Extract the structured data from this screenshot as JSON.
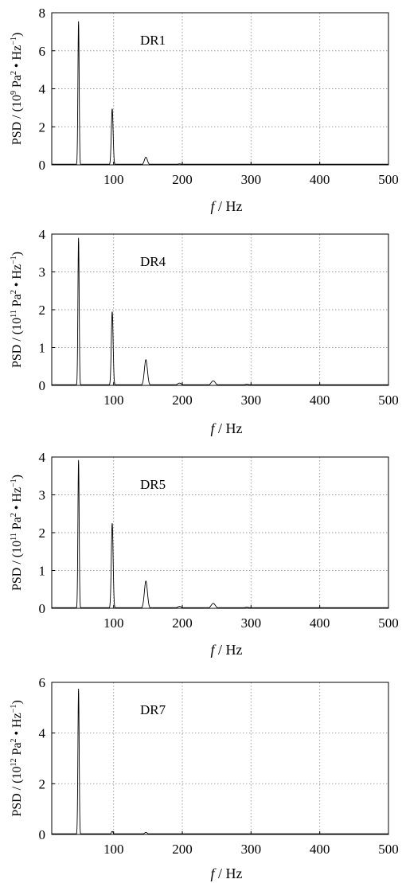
{
  "chart_data": [
    {
      "type": "line",
      "label": "DR1",
      "xlabel_italic": "f",
      "xlabel_rest": " / Hz",
      "ylabel_prefix": "PSD / (10",
      "ylabel_exp": "9",
      "ylabel_mid": " Pa",
      "ylabel_exp2": "2",
      "ylabel_mid2": " • Hz",
      "ylabel_exp3": "−1",
      "ylabel_suffix": ")",
      "xlim": [
        0,
        500
      ],
      "ylim": [
        0,
        8
      ],
      "xticks": [
        100,
        200,
        300,
        400,
        500
      ],
      "yticks": [
        0,
        2,
        4,
        6,
        8
      ],
      "peaks": [
        {
          "f": 49,
          "a": 7.55,
          "w": 0.9
        },
        {
          "f": 98,
          "a": 2.95,
          "w": 1.3
        },
        {
          "f": 147,
          "a": 0.4,
          "w": 2.2
        },
        {
          "f": 196,
          "a": 0.05,
          "w": 3
        },
        {
          "f": 245,
          "a": 0.03,
          "w": 3
        }
      ]
    },
    {
      "type": "line",
      "label": "DR4",
      "xlabel_italic": "f",
      "xlabel_rest": " / Hz",
      "ylabel_prefix": "PSD / (10",
      "ylabel_exp": "11",
      "ylabel_mid": " Pa",
      "ylabel_exp2": "2",
      "ylabel_mid2": " • Hz",
      "ylabel_exp3": "−1",
      "ylabel_suffix": ")",
      "xlim": [
        0,
        500
      ],
      "ylim": [
        0,
        4
      ],
      "xticks": [
        100,
        200,
        300,
        400,
        500
      ],
      "yticks": [
        0,
        1,
        2,
        3,
        4
      ],
      "peaks": [
        {
          "f": 49,
          "a": 3.9,
          "w": 0.9
        },
        {
          "f": 98,
          "a": 1.95,
          "w": 1.3
        },
        {
          "f": 147,
          "a": 0.68,
          "w": 2.2
        },
        {
          "f": 196,
          "a": 0.06,
          "w": 3
        },
        {
          "f": 245,
          "a": 0.12,
          "w": 3
        },
        {
          "f": 294,
          "a": 0.03,
          "w": 3
        }
      ]
    },
    {
      "type": "line",
      "label": "DR5",
      "xlabel_italic": "f",
      "xlabel_rest": " / Hz",
      "ylabel_prefix": "PSD / (10",
      "ylabel_exp": "11",
      "ylabel_mid": " Pa",
      "ylabel_exp2": "2",
      "ylabel_mid2": " • Hz",
      "ylabel_exp3": "−1",
      "ylabel_suffix": ")",
      "xlim": [
        0,
        500
      ],
      "ylim": [
        0,
        4
      ],
      "xticks": [
        100,
        200,
        300,
        400,
        500
      ],
      "yticks": [
        0,
        1,
        2,
        3,
        4
      ],
      "peaks": [
        {
          "f": 49,
          "a": 3.92,
          "w": 0.9
        },
        {
          "f": 98,
          "a": 2.25,
          "w": 1.3
        },
        {
          "f": 147,
          "a": 0.72,
          "w": 2.2
        },
        {
          "f": 196,
          "a": 0.05,
          "w": 3
        },
        {
          "f": 245,
          "a": 0.13,
          "w": 3
        },
        {
          "f": 294,
          "a": 0.03,
          "w": 3
        }
      ]
    },
    {
      "type": "line",
      "label": "DR7",
      "xlabel_italic": "f",
      "xlabel_rest": " / Hz",
      "ylabel_prefix": "PSD / (10",
      "ylabel_exp": "12",
      "ylabel_mid": " Pa",
      "ylabel_exp2": "2",
      "ylabel_mid2": " • Hz",
      "ylabel_exp3": "−1",
      "ylabel_suffix": ")",
      "xlim": [
        0,
        500
      ],
      "ylim": [
        0,
        6
      ],
      "xticks": [
        100,
        200,
        300,
        400,
        500
      ],
      "yticks": [
        0,
        2,
        4,
        6
      ],
      "peaks": [
        {
          "f": 49,
          "a": 5.75,
          "w": 0.9
        },
        {
          "f": 98,
          "a": 0.12,
          "w": 1.3
        },
        {
          "f": 147,
          "a": 0.08,
          "w": 2.2
        }
      ]
    }
  ]
}
